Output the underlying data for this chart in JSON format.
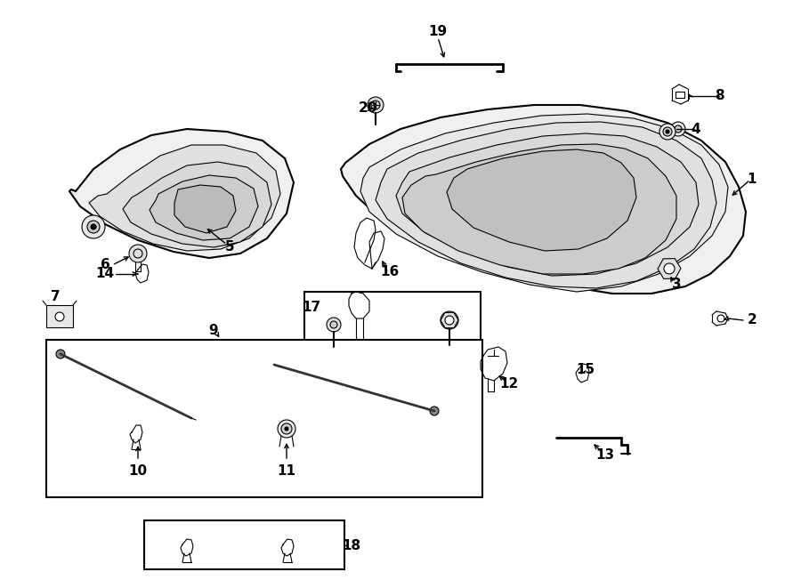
{
  "bg_color": "#ffffff",
  "line_color": "#000000",
  "lw_main": 1.5,
  "lw_thin": 0.8,
  "lw_thick": 2.0,
  "fontsize": 11
}
